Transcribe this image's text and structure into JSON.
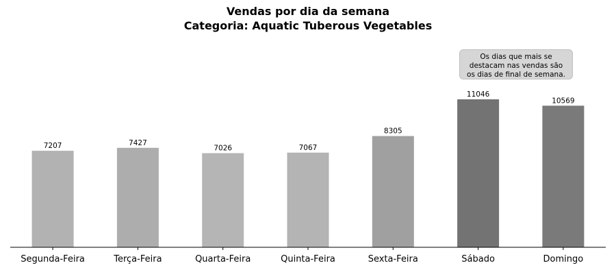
{
  "chart_data": {
    "type": "bar",
    "title": "Vendas por dia da semana",
    "subtitle": "Categoria: Aquatic Tuberous Vegetables",
    "xlabel": "",
    "ylabel": "",
    "categories": [
      "Segunda-Feira",
      "Terça-Feira",
      "Quarta-Feira",
      "Quinta-Feira",
      "Sexta-Feira",
      "Sábado",
      "Domingo"
    ],
    "values": [
      7207,
      7427,
      7026,
      7067,
      8305,
      11046,
      10569
    ],
    "colors": [
      "#b2b2b2",
      "#adadad",
      "#b5b5b5",
      "#b4b4b4",
      "#a0a0a0",
      "#737373",
      "#7a7a7a"
    ],
    "annotation": "Os dias que mais se\ndestacam nas vendas são\nos dias de final de semana.",
    "ylim": [
      0,
      17500
    ],
    "grid": false,
    "legend": "none"
  }
}
